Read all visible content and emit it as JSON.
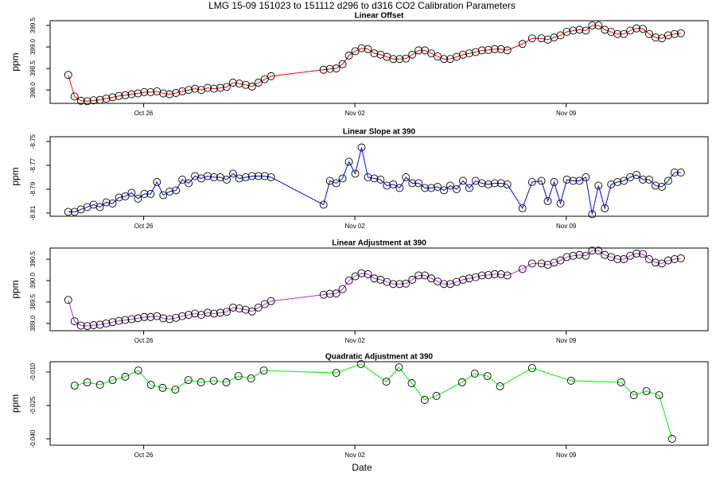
{
  "title": "LMG   15-09    151023 to 151112    d296 to d316   CO2 Calibration Parameters",
  "x_label": "Date",
  "chart_data": [
    {
      "type": "line",
      "title": "Linear Offset",
      "y_label": "ppm",
      "markers": true,
      "color": "#ff0000",
      "x": [
        296.5,
        296.71,
        296.92,
        297.13,
        297.34,
        297.55,
        297.76,
        297.97,
        298.18,
        298.39,
        298.6,
        298.81,
        299.02,
        299.23,
        299.44,
        299.65,
        299.86,
        300.07,
        300.28,
        300.49,
        300.7,
        300.91,
        301.12,
        301.33,
        301.54,
        301.75,
        301.96,
        302.17,
        302.38,
        302.59,
        302.8,
        303.01,
        303.22,
        304.96,
        305.17,
        305.38,
        305.59,
        305.8,
        306.01,
        306.22,
        306.43,
        306.64,
        306.85,
        307.06,
        307.27,
        307.48,
        307.69,
        307.9,
        308.11,
        308.32,
        308.53,
        308.74,
        308.95,
        309.16,
        309.37,
        309.58,
        309.79,
        310.0,
        310.21,
        310.42,
        310.63,
        310.84,
        311.05,
        311.55,
        311.87,
        312.18,
        312.39,
        312.6,
        312.81,
        313.02,
        313.23,
        313.44,
        313.65,
        313.86,
        314.07,
        314.28,
        314.49,
        314.7,
        314.91,
        315.12,
        315.33,
        315.54,
        315.75,
        315.96,
        316.17,
        316.38,
        316.59,
        316.8
      ],
      "values": [
        398.35,
        397.85,
        397.75,
        397.74,
        397.76,
        397.77,
        397.8,
        397.83,
        397.86,
        397.88,
        397.9,
        397.92,
        397.95,
        397.95,
        397.97,
        397.92,
        397.9,
        397.93,
        397.97,
        398.0,
        398.03,
        398.0,
        398.05,
        398.03,
        398.05,
        398.07,
        398.17,
        398.15,
        398.12,
        398.08,
        398.17,
        398.25,
        398.32,
        398.47,
        398.49,
        398.5,
        398.6,
        398.8,
        398.9,
        398.97,
        398.95,
        398.85,
        398.82,
        398.77,
        398.72,
        398.72,
        398.73,
        398.82,
        398.92,
        398.92,
        398.85,
        398.78,
        398.72,
        398.72,
        398.77,
        398.82,
        398.85,
        398.88,
        398.92,
        398.93,
        398.95,
        398.95,
        398.92,
        399.07,
        399.2,
        399.2,
        399.17,
        399.22,
        399.27,
        399.35,
        399.38,
        399.4,
        399.38,
        399.5,
        399.5,
        399.4,
        399.35,
        399.3,
        399.3,
        399.38,
        399.43,
        399.42,
        399.3,
        399.22,
        399.2,
        399.27,
        399.3,
        399.32
      ],
      "xlim": [
        295.9,
        317.7
      ],
      "xticks": [
        {
          "value": 299,
          "label": "Oct 26"
        },
        {
          "value": 306,
          "label": "Nov 02"
        },
        {
          "value": 313,
          "label": "Nov 09"
        }
      ],
      "ylim": [
        397.69,
        399.61
      ],
      "yticks": [
        {
          "value": 398,
          "label": "398.0"
        },
        {
          "value": 398.5,
          "label": "398.5"
        },
        {
          "value": 399,
          "label": "399.0"
        },
        {
          "value": 399.5,
          "label": "399.5"
        }
      ]
    },
    {
      "type": "line",
      "title": "Linear Slope at 390",
      "y_label": "ppm",
      "markers": true,
      "color": "#0000ff",
      "x": [
        296.5,
        296.71,
        296.92,
        297.13,
        297.34,
        297.55,
        297.76,
        297.97,
        298.18,
        298.39,
        298.6,
        298.81,
        299.02,
        299.23,
        299.44,
        299.65,
        299.86,
        300.07,
        300.28,
        300.49,
        300.7,
        300.91,
        301.12,
        301.33,
        301.54,
        301.75,
        301.96,
        302.17,
        302.38,
        302.59,
        302.8,
        303.01,
        303.22,
        304.96,
        305.17,
        305.38,
        305.59,
        305.8,
        306.01,
        306.22,
        306.43,
        306.64,
        306.85,
        307.06,
        307.27,
        307.48,
        307.69,
        307.9,
        308.11,
        308.32,
        308.53,
        308.74,
        308.95,
        309.16,
        309.37,
        309.58,
        309.79,
        310.0,
        310.21,
        310.42,
        310.63,
        310.84,
        311.05,
        311.55,
        311.87,
        312.18,
        312.39,
        312.6,
        312.81,
        313.02,
        313.23,
        313.44,
        313.65,
        313.86,
        314.07,
        314.28,
        314.49,
        314.7,
        314.91,
        315.12,
        315.33,
        315.54,
        315.75,
        315.96,
        316.17,
        316.38,
        316.59,
        316.8
      ],
      "values": [
        -8.809,
        -8.809,
        -8.807,
        -8.805,
        -8.803,
        -8.805,
        -8.801,
        -8.802,
        -8.797,
        -8.796,
        -8.793,
        -8.798,
        -8.794,
        -8.794,
        -8.784,
        -8.795,
        -8.792,
        -8.791,
        -8.782,
        -8.785,
        -8.779,
        -8.781,
        -8.779,
        -8.78,
        -8.78,
        -8.782,
        -8.777,
        -8.781,
        -8.78,
        -8.779,
        -8.779,
        -8.779,
        -8.78,
        -8.803,
        -8.783,
        -8.785,
        -8.781,
        -8.767,
        -8.777,
        -8.755,
        -8.78,
        -8.781,
        -8.782,
        -8.787,
        -8.786,
        -8.789,
        -8.78,
        -8.785,
        -8.785,
        -8.789,
        -8.789,
        -8.788,
        -8.791,
        -8.787,
        -8.79,
        -8.783,
        -8.789,
        -8.783,
        -8.785,
        -8.786,
        -8.785,
        -8.785,
        -8.786,
        -8.806,
        -8.784,
        -8.783,
        -8.8,
        -8.784,
        -8.802,
        -8.782,
        -8.783,
        -8.783,
        -8.78,
        -8.811,
        -8.787,
        -8.806,
        -8.786,
        -8.784,
        -8.783,
        -8.78,
        -8.778,
        -8.782,
        -8.782,
        -8.787,
        -8.788,
        -8.783,
        -8.776,
        -8.776
      ],
      "xlim": [
        295.9,
        317.7
      ],
      "xticks": [
        {
          "value": 299,
          "label": "Oct 26"
        },
        {
          "value": 306,
          "label": "Nov 02"
        },
        {
          "value": 313,
          "label": "Nov 09"
        }
      ],
      "ylim": [
        -8.8127,
        -8.746
      ],
      "yticks": [
        -8.81,
        -8.79,
        -8.77,
        -8.75
      ]
    },
    {
      "type": "line",
      "title": "Linear Adjustment at 390",
      "y_label": "ppm",
      "markers": true,
      "color": "#b030d0",
      "x": [
        296.5,
        296.71,
        296.92,
        297.13,
        297.34,
        297.55,
        297.76,
        297.97,
        298.18,
        298.39,
        298.6,
        298.81,
        299.02,
        299.23,
        299.44,
        299.65,
        299.86,
        300.07,
        300.28,
        300.49,
        300.7,
        300.91,
        301.12,
        301.33,
        301.54,
        301.75,
        301.96,
        302.17,
        302.38,
        302.59,
        302.8,
        303.01,
        303.22,
        304.96,
        305.17,
        305.38,
        305.59,
        305.8,
        306.01,
        306.22,
        306.43,
        306.64,
        306.85,
        307.06,
        307.27,
        307.48,
        307.69,
        307.9,
        308.11,
        308.32,
        308.53,
        308.74,
        308.95,
        309.16,
        309.37,
        309.58,
        309.79,
        310.0,
        310.21,
        310.42,
        310.63,
        310.84,
        311.05,
        311.55,
        311.87,
        312.18,
        312.39,
        312.6,
        312.81,
        313.02,
        313.23,
        313.44,
        313.65,
        313.86,
        314.07,
        314.28,
        314.49,
        314.7,
        314.91,
        315.12,
        315.33,
        315.54,
        315.75,
        315.96,
        316.17,
        316.38,
        316.59,
        316.8
      ],
      "values": [
        389.55,
        389.05,
        388.95,
        388.94,
        388.96,
        388.97,
        389.0,
        389.03,
        389.06,
        389.08,
        389.1,
        389.12,
        389.15,
        389.15,
        389.17,
        389.12,
        389.1,
        389.13,
        389.17,
        389.2,
        389.23,
        389.2,
        389.25,
        389.23,
        389.25,
        389.27,
        389.37,
        389.35,
        389.32,
        389.28,
        389.37,
        389.45,
        389.52,
        389.67,
        389.69,
        389.7,
        389.8,
        390.0,
        390.1,
        390.17,
        390.15,
        390.05,
        390.02,
        389.97,
        389.92,
        389.92,
        389.93,
        390.02,
        390.12,
        390.12,
        390.05,
        389.98,
        389.92,
        389.92,
        389.97,
        390.02,
        390.05,
        390.08,
        390.12,
        390.13,
        390.15,
        390.15,
        390.12,
        390.27,
        390.4,
        390.4,
        390.37,
        390.42,
        390.47,
        390.55,
        390.58,
        390.6,
        390.58,
        390.7,
        390.7,
        390.6,
        390.55,
        390.5,
        390.5,
        390.58,
        390.63,
        390.62,
        390.5,
        390.42,
        390.4,
        390.47,
        390.5,
        390.52
      ],
      "xlim": [
        295.9,
        317.7
      ],
      "xticks": [
        {
          "value": 299,
          "label": "Oct 26"
        },
        {
          "value": 306,
          "label": "Nov 02"
        },
        {
          "value": 313,
          "label": "Nov 09"
        }
      ],
      "ylim": [
        388.83,
        390.76
      ],
      "yticks": [
        {
          "value": 389,
          "label": "389.0"
        },
        {
          "value": 389.5,
          "label": "389.5"
        },
        {
          "value": 390,
          "label": "390.0"
        },
        {
          "value": 390.5,
          "label": "390.5"
        }
      ]
    },
    {
      "type": "line",
      "title": "Quadratic Adjustment at 390",
      "y_label": "ppm",
      "markers": true,
      "color": "#00ee00",
      "x": [
        296.71,
        297.13,
        297.55,
        297.97,
        298.39,
        298.82,
        299.24,
        299.63,
        300.05,
        300.48,
        300.9,
        301.32,
        301.74,
        302.14,
        302.56,
        302.98,
        305.38,
        306.2,
        307.04,
        307.46,
        307.88,
        308.31,
        308.7,
        309.55,
        309.97,
        310.39,
        310.81,
        311.87,
        313.16,
        314.82,
        315.24,
        315.66,
        316.08,
        316.51
      ],
      "values": [
        -0.0161,
        -0.0146,
        -0.0157,
        -0.0136,
        -0.0121,
        -0.0093,
        -0.0157,
        -0.0171,
        -0.0179,
        -0.0136,
        -0.0146,
        -0.0139,
        -0.0146,
        -0.0118,
        -0.0129,
        -0.0093,
        -0.0104,
        -0.0064,
        -0.0143,
        -0.0079,
        -0.015,
        -0.0225,
        -0.0207,
        -0.0146,
        -0.0107,
        -0.0118,
        -0.0164,
        -0.0082,
        -0.0139,
        -0.0146,
        -0.0204,
        -0.0186,
        -0.0204,
        -0.04
      ],
      "xlim": [
        295.9,
        317.7
      ],
      "xticks": [
        {
          "value": 299,
          "label": "Oct 26"
        },
        {
          "value": 306,
          "label": "Nov 02"
        },
        {
          "value": 313,
          "label": "Nov 09"
        }
      ],
      "ylim": [
        -0.04286,
        -0.00536
      ],
      "yticks": [
        {
          "value": -0.04,
          "label": "-0.040"
        },
        {
          "value": -0.025,
          "label": "-0.025"
        },
        {
          "value": -0.01,
          "label": "-0.010"
        }
      ]
    }
  ]
}
